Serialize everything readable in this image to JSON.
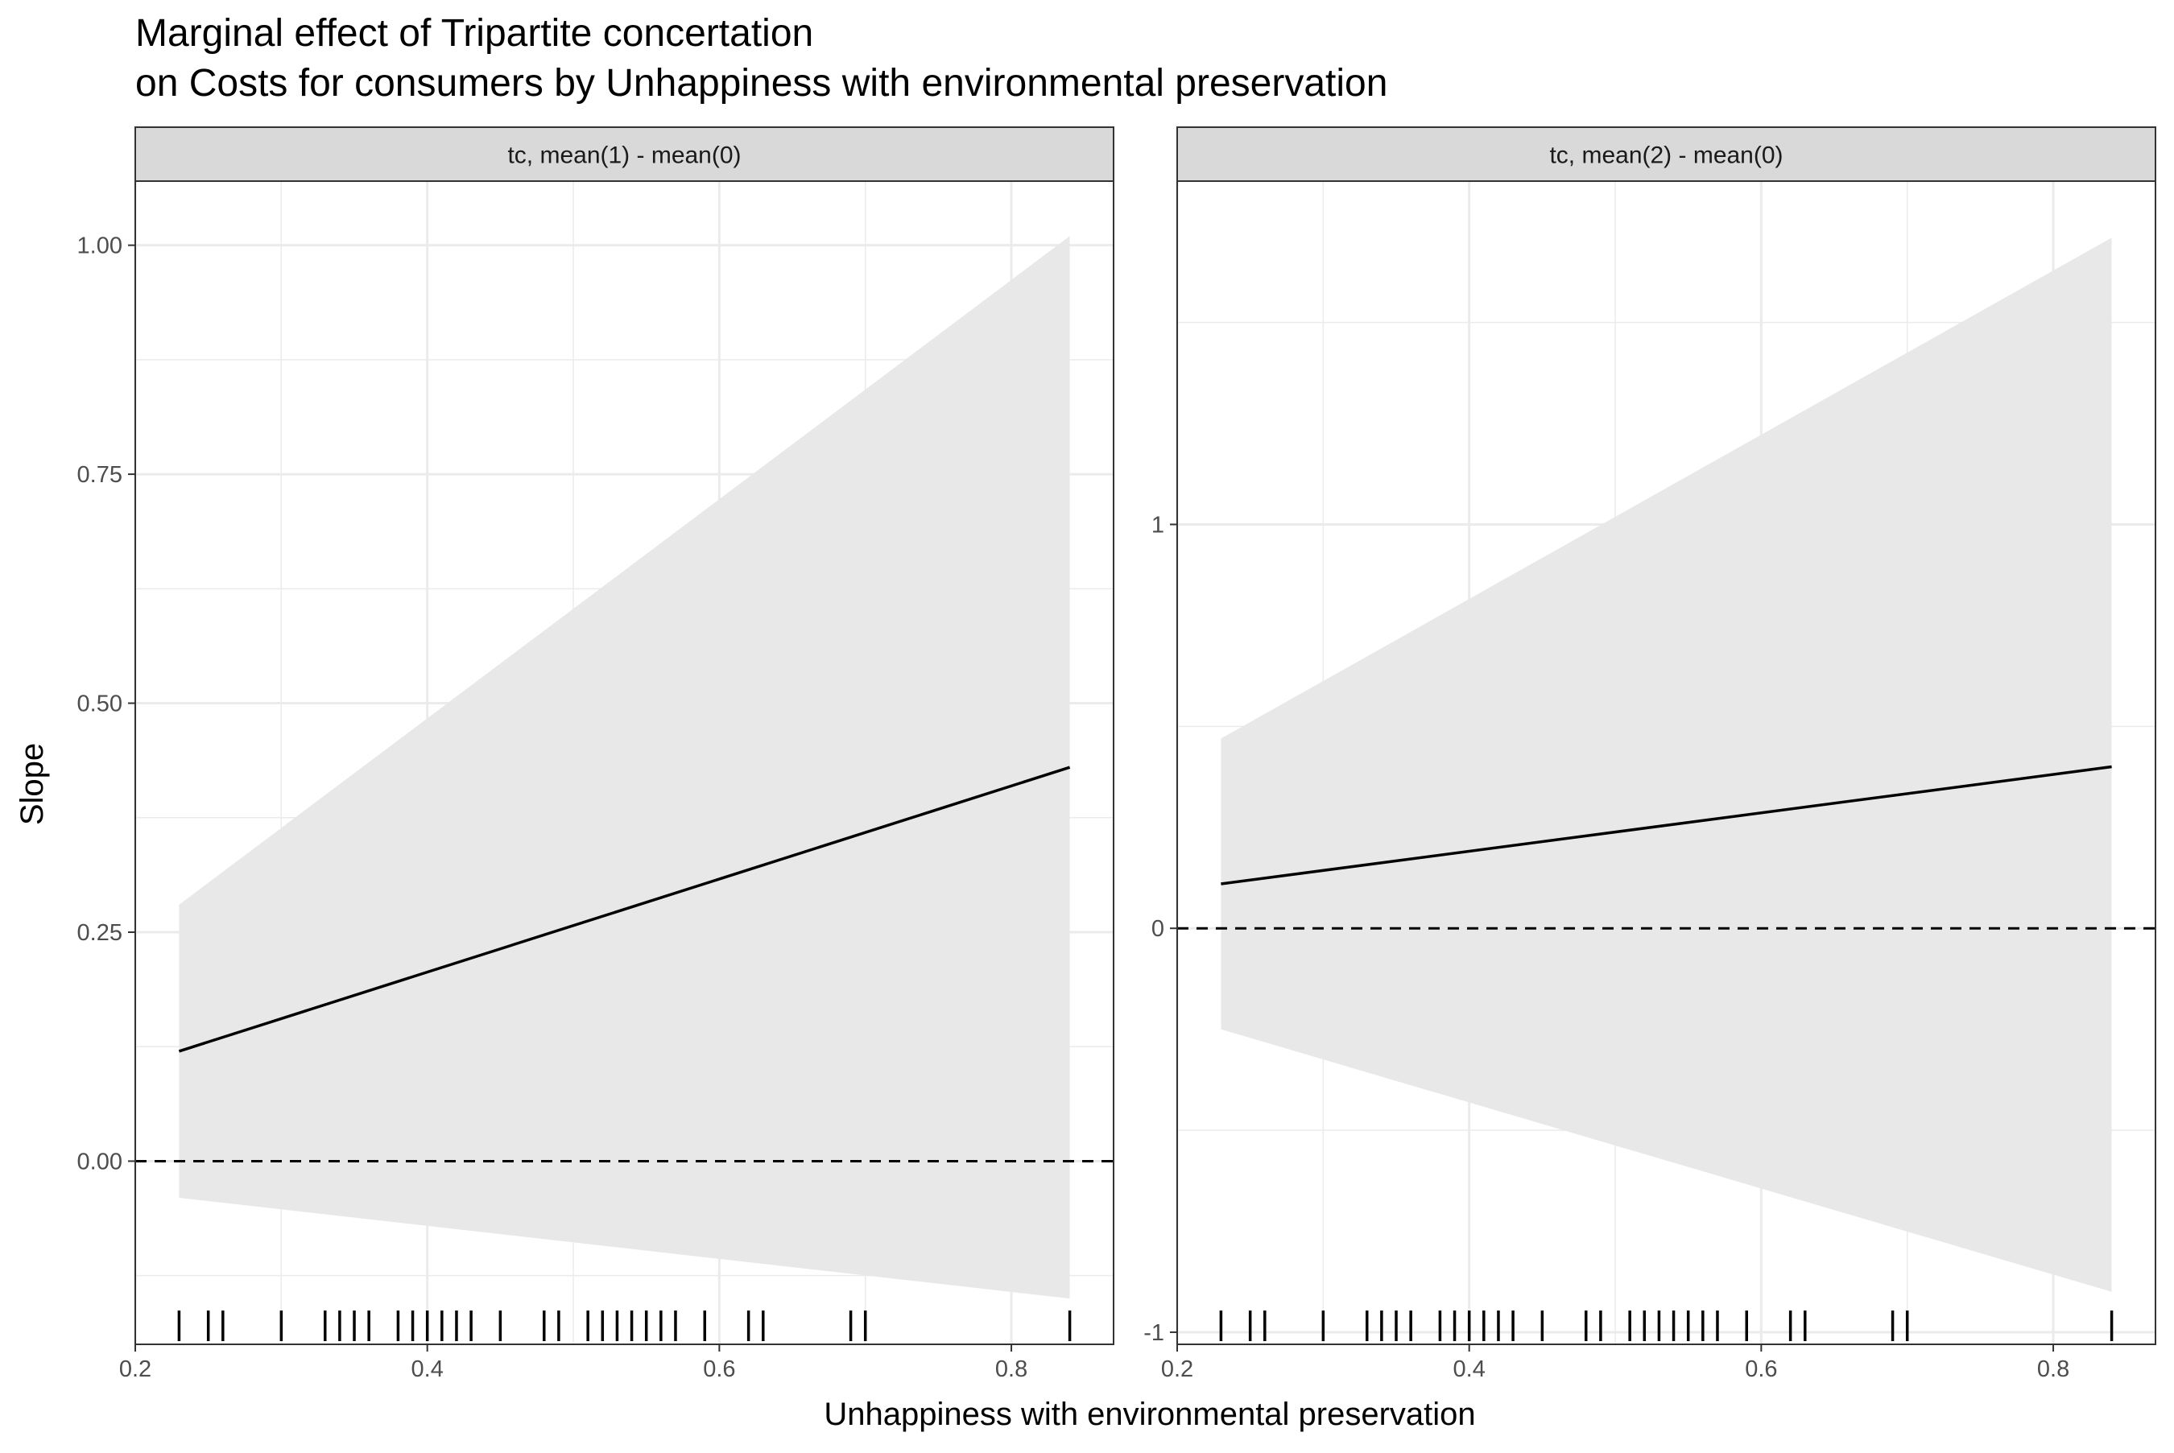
{
  "title": "Marginal effect of Tripartite concertation",
  "subtitle": "on Costs for consumers by Unhappiness with environmental preservation",
  "xlabel": "Unhappiness with environmental preservation",
  "ylabel": "Slope",
  "colors": {
    "background": "#ffffff",
    "strip_fill": "#d9d9d9",
    "ribbon_fill": "#e8e8e8",
    "grid": "#ebebeb",
    "line": "#000000",
    "panel_border": "#333333"
  },
  "chart_data": [
    {
      "type": "line",
      "panel_label": "tc, mean(1) - mean(0)",
      "x": [
        0.23,
        0.84
      ],
      "estimate": [
        0.12,
        0.43
      ],
      "ci_lower": [
        -0.04,
        -0.15
      ],
      "ci_upper": [
        0.28,
        1.01
      ],
      "reference_line": 0,
      "xlim": [
        0.2,
        0.87
      ],
      "ylim": [
        -0.2,
        1.07
      ],
      "x_ticks": [
        0.2,
        0.4,
        0.6,
        0.8
      ],
      "x_tick_labels": [
        "0.2",
        "0.4",
        "0.6",
        "0.8"
      ],
      "y_ticks": [
        0,
        0.25,
        0.5,
        0.75,
        1.0
      ],
      "y_tick_labels": [
        "0.00",
        "0.25",
        "0.50",
        "0.75",
        "1.00"
      ],
      "rug": [
        0.23,
        0.25,
        0.26,
        0.3,
        0.33,
        0.34,
        0.35,
        0.36,
        0.38,
        0.39,
        0.4,
        0.41,
        0.42,
        0.43,
        0.45,
        0.48,
        0.49,
        0.51,
        0.52,
        0.53,
        0.54,
        0.55,
        0.56,
        0.57,
        0.59,
        0.62,
        0.63,
        0.69,
        0.7,
        0.84
      ],
      "grid": true
    },
    {
      "type": "line",
      "panel_label": "tc, mean(2) - mean(0)",
      "x": [
        0.23,
        0.84
      ],
      "estimate": [
        0.11,
        0.4
      ],
      "ci_lower": [
        -0.25,
        -0.9
      ],
      "ci_upper": [
        0.47,
        1.71
      ],
      "reference_line": 0,
      "xlim": [
        0.2,
        0.87
      ],
      "ylim": [
        -1.03,
        1.85
      ],
      "x_ticks": [
        0.2,
        0.4,
        0.6,
        0.8
      ],
      "x_tick_labels": [
        "0.2",
        "0.4",
        "0.6",
        "0.8"
      ],
      "y_ticks": [
        -1,
        0,
        1
      ],
      "y_tick_labels": [
        "-1",
        "0",
        "1"
      ],
      "rug": [
        0.23,
        0.25,
        0.26,
        0.3,
        0.33,
        0.34,
        0.35,
        0.36,
        0.38,
        0.39,
        0.4,
        0.41,
        0.42,
        0.43,
        0.45,
        0.48,
        0.49,
        0.51,
        0.52,
        0.53,
        0.54,
        0.55,
        0.56,
        0.57,
        0.59,
        0.62,
        0.63,
        0.69,
        0.7,
        0.84
      ],
      "grid": true
    }
  ]
}
